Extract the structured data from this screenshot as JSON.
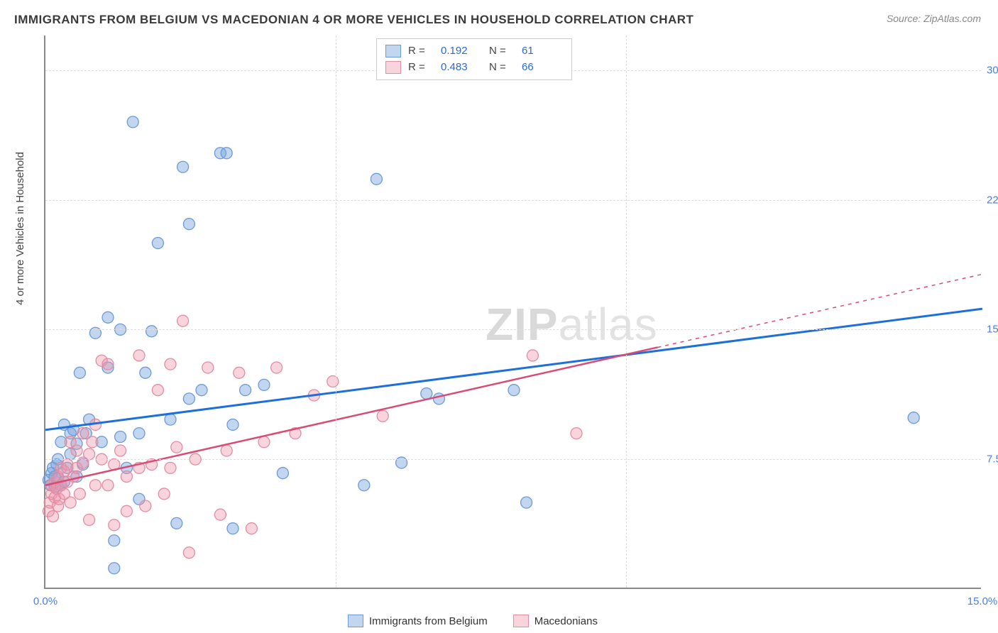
{
  "title": "IMMIGRANTS FROM BELGIUM VS MACEDONIAN 4 OR MORE VEHICLES IN HOUSEHOLD CORRELATION CHART",
  "source": "Source: ZipAtlas.com",
  "watermark_a": "ZIP",
  "watermark_b": "atlas",
  "ylabel": "4 or more Vehicles in Household",
  "chart": {
    "type": "scatter",
    "xlim": [
      0,
      15
    ],
    "ylim": [
      0,
      32
    ],
    "xticks": [
      {
        "v": 0,
        "label": "0.0%"
      },
      {
        "v": 15,
        "label": "15.0%"
      }
    ],
    "yticks": [
      {
        "v": 7.5,
        "label": "7.5%"
      },
      {
        "v": 15.0,
        "label": "15.0%"
      },
      {
        "v": 22.5,
        "label": "22.5%"
      },
      {
        "v": 30.0,
        "label": "30.0%"
      }
    ],
    "grid_v_at": [
      4.65,
      9.3
    ],
    "background_color": "#ffffff",
    "grid_color": "#dddddd",
    "axis_color": "#888888",
    "point_radius": 8,
    "series": [
      {
        "name": "Immigrants from Belgium",
        "color_fill": "rgba(120,164,222,0.45)",
        "color_stroke": "#6d9ad6",
        "line_color": "#1e6fd9",
        "line_width": 3,
        "r": 0.192,
        "n": 61,
        "trend": {
          "x1": 0,
          "y1": 9.2,
          "x2": 15,
          "y2": 16.2,
          "solid_until_x": 15
        },
        "points": [
          [
            0.05,
            6.3
          ],
          [
            0.08,
            6.0
          ],
          [
            0.1,
            6.7
          ],
          [
            0.12,
            7.0
          ],
          [
            0.15,
            5.9
          ],
          [
            0.15,
            6.5
          ],
          [
            0.18,
            7.2
          ],
          [
            0.2,
            6.4
          ],
          [
            0.2,
            7.5
          ],
          [
            0.25,
            6.0
          ],
          [
            0.25,
            8.5
          ],
          [
            0.3,
            6.2
          ],
          [
            0.3,
            9.5
          ],
          [
            0.35,
            7.0
          ],
          [
            0.4,
            7.8
          ],
          [
            0.4,
            9.0
          ],
          [
            0.45,
            9.2
          ],
          [
            0.5,
            6.5
          ],
          [
            0.5,
            8.4
          ],
          [
            0.55,
            12.5
          ],
          [
            0.6,
            7.2
          ],
          [
            0.65,
            9.0
          ],
          [
            0.7,
            9.8
          ],
          [
            0.8,
            14.8
          ],
          [
            0.9,
            8.5
          ],
          [
            1.0,
            12.8
          ],
          [
            1.0,
            15.7
          ],
          [
            1.1,
            1.2
          ],
          [
            1.1,
            2.8
          ],
          [
            1.2,
            8.8
          ],
          [
            1.2,
            15.0
          ],
          [
            1.3,
            7.0
          ],
          [
            1.4,
            27.0
          ],
          [
            1.5,
            5.2
          ],
          [
            1.5,
            9.0
          ],
          [
            1.6,
            12.5
          ],
          [
            1.7,
            14.9
          ],
          [
            1.8,
            20.0
          ],
          [
            2.0,
            9.8
          ],
          [
            2.1,
            3.8
          ],
          [
            2.2,
            24.4
          ],
          [
            2.3,
            11.0
          ],
          [
            2.3,
            21.1
          ],
          [
            2.5,
            11.5
          ],
          [
            2.8,
            25.2
          ],
          [
            2.9,
            25.2
          ],
          [
            3.0,
            3.5
          ],
          [
            3.0,
            9.5
          ],
          [
            3.2,
            11.5
          ],
          [
            3.5,
            11.8
          ],
          [
            3.8,
            6.7
          ],
          [
            5.1,
            6.0
          ],
          [
            5.3,
            23.7
          ],
          [
            5.7,
            7.3
          ],
          [
            6.1,
            11.3
          ],
          [
            6.3,
            11.0
          ],
          [
            7.5,
            11.5
          ],
          [
            7.7,
            5.0
          ],
          [
            13.9,
            9.9
          ]
        ]
      },
      {
        "name": "Macedonians",
        "color_fill": "rgba(238,148,170,0.40)",
        "color_stroke": "#e18ca2",
        "line_color": "#d94a74",
        "line_width": 2.5,
        "r": 0.483,
        "n": 66,
        "trend": {
          "x1": 0,
          "y1": 6.0,
          "x2": 15,
          "y2": 18.2,
          "solid_until_x": 9.8
        },
        "points": [
          [
            0.05,
            4.5
          ],
          [
            0.07,
            5.0
          ],
          [
            0.1,
            5.5
          ],
          [
            0.1,
            6.0
          ],
          [
            0.12,
            4.2
          ],
          [
            0.15,
            5.3
          ],
          [
            0.15,
            6.2
          ],
          [
            0.18,
            5.8
          ],
          [
            0.2,
            4.8
          ],
          [
            0.2,
            6.5
          ],
          [
            0.22,
            5.2
          ],
          [
            0.25,
            6.0
          ],
          [
            0.25,
            7.0
          ],
          [
            0.3,
            5.5
          ],
          [
            0.3,
            6.8
          ],
          [
            0.35,
            6.2
          ],
          [
            0.35,
            7.2
          ],
          [
            0.4,
            5.0
          ],
          [
            0.4,
            8.5
          ],
          [
            0.45,
            6.5
          ],
          [
            0.5,
            7.0
          ],
          [
            0.5,
            8.0
          ],
          [
            0.55,
            5.5
          ],
          [
            0.6,
            7.3
          ],
          [
            0.6,
            9.0
          ],
          [
            0.7,
            4.0
          ],
          [
            0.7,
            7.8
          ],
          [
            0.75,
            8.5
          ],
          [
            0.8,
            6.0
          ],
          [
            0.8,
            9.5
          ],
          [
            0.9,
            7.5
          ],
          [
            0.9,
            13.2
          ],
          [
            1.0,
            6.0
          ],
          [
            1.0,
            13.0
          ],
          [
            1.1,
            3.7
          ],
          [
            1.1,
            7.2
          ],
          [
            1.2,
            8.0
          ],
          [
            1.3,
            4.5
          ],
          [
            1.3,
            6.5
          ],
          [
            1.5,
            7.0
          ],
          [
            1.5,
            13.5
          ],
          [
            1.6,
            4.8
          ],
          [
            1.7,
            7.2
          ],
          [
            1.8,
            11.5
          ],
          [
            1.9,
            5.5
          ],
          [
            2.0,
            7.0
          ],
          [
            2.0,
            13.0
          ],
          [
            2.1,
            8.2
          ],
          [
            2.2,
            15.5
          ],
          [
            2.3,
            2.1
          ],
          [
            2.4,
            7.5
          ],
          [
            2.6,
            12.8
          ],
          [
            2.8,
            4.3
          ],
          [
            2.9,
            8.0
          ],
          [
            3.1,
            12.5
          ],
          [
            3.3,
            3.5
          ],
          [
            3.5,
            8.5
          ],
          [
            3.7,
            12.8
          ],
          [
            4.0,
            9.0
          ],
          [
            4.3,
            11.2
          ],
          [
            4.6,
            12.0
          ],
          [
            5.4,
            10.0
          ],
          [
            7.8,
            13.5
          ],
          [
            8.5,
            9.0
          ]
        ]
      }
    ]
  },
  "legend_top": [
    {
      "swatch_fill": "rgba(120,164,222,0.45)",
      "swatch_stroke": "#6d9ad6",
      "r_lbl": "R  =",
      "r_val": "0.192",
      "n_lbl": "N  =",
      "n_val": "61"
    },
    {
      "swatch_fill": "rgba(238,148,170,0.40)",
      "swatch_stroke": "#e18ca2",
      "r_lbl": "R  =",
      "r_val": "0.483",
      "n_lbl": "N  =",
      "n_val": "66"
    }
  ],
  "legend_bottom": [
    {
      "swatch_fill": "rgba(120,164,222,0.45)",
      "swatch_stroke": "#6d9ad6",
      "label": "Immigrants from Belgium"
    },
    {
      "swatch_fill": "rgba(238,148,170,0.40)",
      "swatch_stroke": "#e18ca2",
      "label": "Macedonians"
    }
  ]
}
